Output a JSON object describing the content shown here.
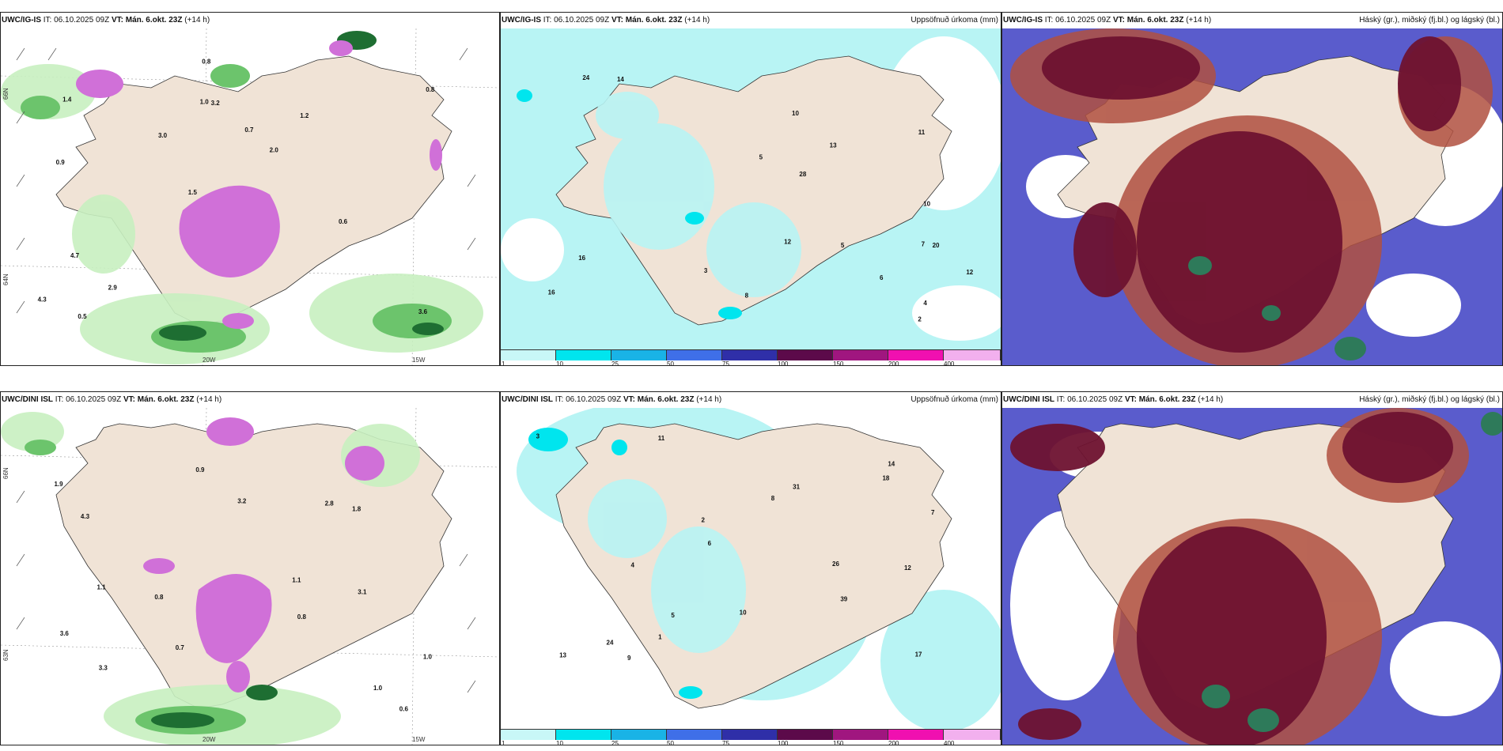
{
  "rows": [
    {
      "model": "UWC/IG-IS",
      "it_label": "IT:",
      "it_value": "06.10.2025 09Z",
      "vt_label": "VT:",
      "vt_value": "Mán. 6.okt. 23Z",
      "lead": "(+14 h)"
    },
    {
      "model": "UWC/DINI ISL",
      "it_label": "IT:",
      "it_value": "06.10.2025 09Z",
      "vt_label": "VT:",
      "vt_value": "Mán. 6.okt. 23Z",
      "lead": "(+14 h)"
    }
  ],
  "precip_title": "Uppsöfnuð úrkoma (mm)",
  "cloud_title": "Háský (gr.), miðský (fj.bl.) og lágský (bl.)",
  "colorbar": {
    "labels": [
      "1",
      "10",
      "25",
      "50",
      "75",
      "100",
      "150",
      "200",
      "400"
    ],
    "colors": [
      "#c8f7f7",
      "#00e5ee",
      "#19b3e6",
      "#3f6fe8",
      "#2f2fa8",
      "#5c0a4a",
      "#a0167f",
      "#f010b0",
      "#f2b0ee"
    ]
  },
  "axis": {
    "lon_20w": "20W",
    "lon_15w": "15W",
    "lat_66": "66N",
    "lat_64": "64N",
    "lat_63": "63N"
  },
  "wind_labels_top": [
    "3.6",
    "0.9",
    "0.8",
    "1.5",
    "1.2",
    "0.5",
    "1.0",
    "0.7",
    "4.7",
    "3.0",
    "4.3",
    "2.9",
    "3.2",
    "2.0",
    "0.6",
    "1.4",
    "0.8"
  ],
  "wind_labels_bottom": [
    "0.6",
    "1.1",
    "0.8",
    "1.9",
    "1.0",
    "4.3",
    "3.3",
    "0.8",
    "1.8",
    "3.2",
    "2.8",
    "1.0",
    "0.7",
    "0.9",
    "1.1",
    "3.6",
    "3.1"
  ],
  "precip_values_top": [
    "16",
    "28",
    "7",
    "12",
    "10",
    "6",
    "5",
    "13",
    "20",
    "16",
    "14",
    "12",
    "10",
    "8",
    "24",
    "3",
    "2",
    "11",
    "4",
    "5"
  ],
  "precip_values_bottom": [
    "13",
    "39",
    "31",
    "26",
    "17",
    "18",
    "11",
    "10",
    "8",
    "9",
    "12",
    "24",
    "14",
    "5",
    "3",
    "2",
    "4",
    "6",
    "1",
    "7"
  ],
  "colors": {
    "land": "#f0e3d6",
    "wind_light": "#c8f0c0",
    "wind_mid": "#6cc46c",
    "wind_dark": "#1e6e32",
    "gust_pink": "#d070d8",
    "precip_light": "#b8f4f4",
    "cloud_high": "#6e1230",
    "cloud_mid": "#b05040",
    "cloud_low": "#5a5ccc",
    "cloud_green": "#2e7a5a"
  }
}
